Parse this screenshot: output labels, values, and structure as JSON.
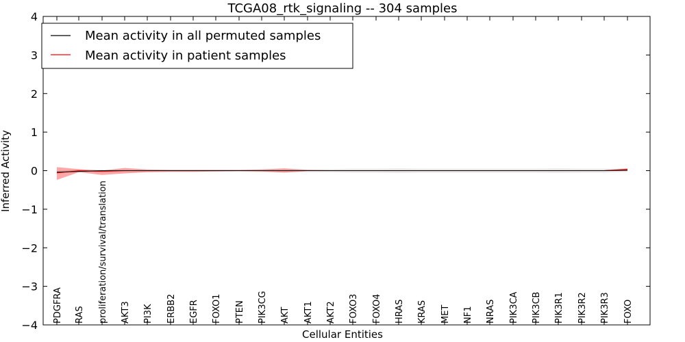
{
  "chart_data": {
    "type": "line",
    "title": "TCGA08_rtk_signaling -- 304 samples",
    "xlabel": "Cellular Entities",
    "ylabel": "Inferred Activity",
    "ylim": [
      -4,
      4
    ],
    "yticks": [
      "4",
      "3",
      "2",
      "1",
      "0",
      "−1",
      "−2",
      "−3",
      "−4"
    ],
    "ytick_values": [
      4,
      3,
      2,
      1,
      0,
      -1,
      -2,
      -3,
      -4
    ],
    "categories": [
      "PDGFRA",
      "RAS",
      "proliferation/survival/translation",
      "AKT3",
      "PI3K",
      "ERBB2",
      "EGFR",
      "FOXO1",
      "PTEN",
      "PIK3CG",
      "AKT",
      "AKT1",
      "AKT2",
      "FOXO3",
      "FOXO4",
      "HRAS",
      "KRAS",
      "MET",
      "NF1",
      "NRAS",
      "PIK3CA",
      "PIK3CB",
      "PIK3R1",
      "PIK3R2",
      "PIK3R3",
      "FOXO"
    ],
    "legend": {
      "position": "top-left",
      "entries": [
        "Mean activity in all permuted samples",
        "Mean activity in patient samples"
      ]
    },
    "series": [
      {
        "name": "Mean activity in all permuted samples",
        "color": "#000000",
        "values": [
          -0.04,
          -0.02,
          0.0,
          0.0,
          0.0,
          0.0,
          0.0,
          0.0,
          0.0,
          0.0,
          0.0,
          0.0,
          0.0,
          0.0,
          0.0,
          0.0,
          0.0,
          0.0,
          0.0,
          0.0,
          0.0,
          0.0,
          0.0,
          0.0,
          0.0,
          0.01
        ],
        "band_lower": [
          -0.05,
          -0.04,
          -0.03,
          -0.03,
          -0.03,
          -0.03,
          -0.03,
          -0.03,
          -0.03,
          -0.04,
          -0.04,
          -0.04,
          -0.04,
          -0.05,
          -0.05,
          -0.06,
          -0.05,
          -0.05,
          -0.05,
          -0.05,
          -0.05,
          -0.05,
          -0.06,
          -0.05,
          -0.05,
          -0.03
        ],
        "band_upper": [
          0.0,
          0.02,
          0.03,
          0.03,
          0.03,
          0.03,
          0.03,
          0.03,
          0.03,
          0.04,
          0.04,
          0.04,
          0.04,
          0.05,
          0.05,
          0.06,
          0.05,
          0.05,
          0.05,
          0.05,
          0.05,
          0.05,
          0.06,
          0.05,
          0.05,
          0.05
        ],
        "band_color": "#cccccc"
      },
      {
        "name": "Mean activity in patient samples",
        "color": "#ff0000",
        "values": [
          -0.06,
          0.0,
          -0.02,
          0.0,
          0.0,
          0.0,
          0.0,
          0.0,
          0.0,
          0.0,
          0.0,
          0.0,
          0.0,
          0.0,
          0.0,
          0.0,
          0.0,
          0.0,
          0.0,
          0.0,
          0.0,
          0.0,
          0.0,
          0.0,
          0.0,
          0.03
        ],
        "band_lower": [
          -0.24,
          -0.04,
          -0.11,
          -0.07,
          -0.04,
          -0.03,
          -0.03,
          -0.02,
          -0.01,
          -0.02,
          -0.05,
          -0.01,
          -0.01,
          -0.01,
          -0.01,
          -0.01,
          -0.01,
          -0.01,
          -0.01,
          -0.01,
          -0.01,
          -0.01,
          -0.01,
          -0.01,
          -0.01,
          0.0
        ],
        "band_upper": [
          0.09,
          0.04,
          0.0,
          0.07,
          0.03,
          0.02,
          0.02,
          0.02,
          0.02,
          0.03,
          0.06,
          0.02,
          0.01,
          0.01,
          0.01,
          0.01,
          0.01,
          0.01,
          0.01,
          0.01,
          0.01,
          0.01,
          0.01,
          0.01,
          0.01,
          0.06
        ],
        "band_color": "#ff0000"
      }
    ]
  }
}
